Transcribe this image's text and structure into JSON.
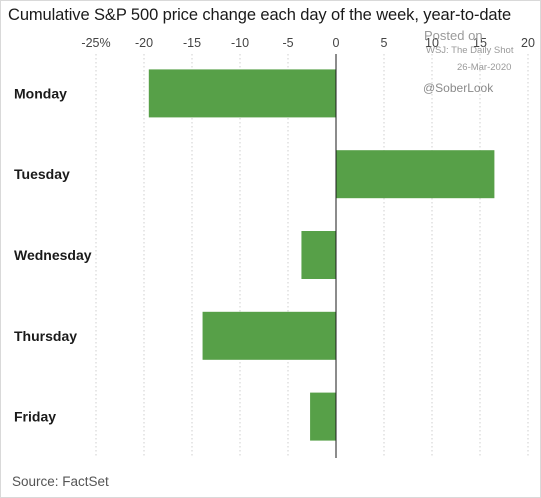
{
  "chart_data": {
    "type": "bar",
    "orientation": "horizontal",
    "title": "Cumulative S&P 500 price change each day of the week, year-to-date",
    "categories": [
      "Monday",
      "Tuesday",
      "Wednesday",
      "Thursday",
      "Friday"
    ],
    "values": [
      -19.5,
      16.5,
      -3.6,
      -13.9,
      -2.7
    ],
    "xlim": [
      -25,
      20
    ],
    "xticks": [
      -25,
      -20,
      -15,
      -10,
      -5,
      0,
      5,
      10,
      15,
      20
    ],
    "xtick_labels": [
      "-25%",
      "-20",
      "-15",
      "-10",
      "-5",
      "0",
      "5",
      "10",
      "15",
      "20"
    ],
    "xlabel": "",
    "ylabel": "",
    "grid": "vertical dashed",
    "bar_color": "#57a048",
    "source": "Source: FactSet"
  },
  "watermark": {
    "posted": "Posted on",
    "outlet": "WSJ: The Daily Shot",
    "date": "26-Mar-2020",
    "handle": "@SoberLook"
  }
}
